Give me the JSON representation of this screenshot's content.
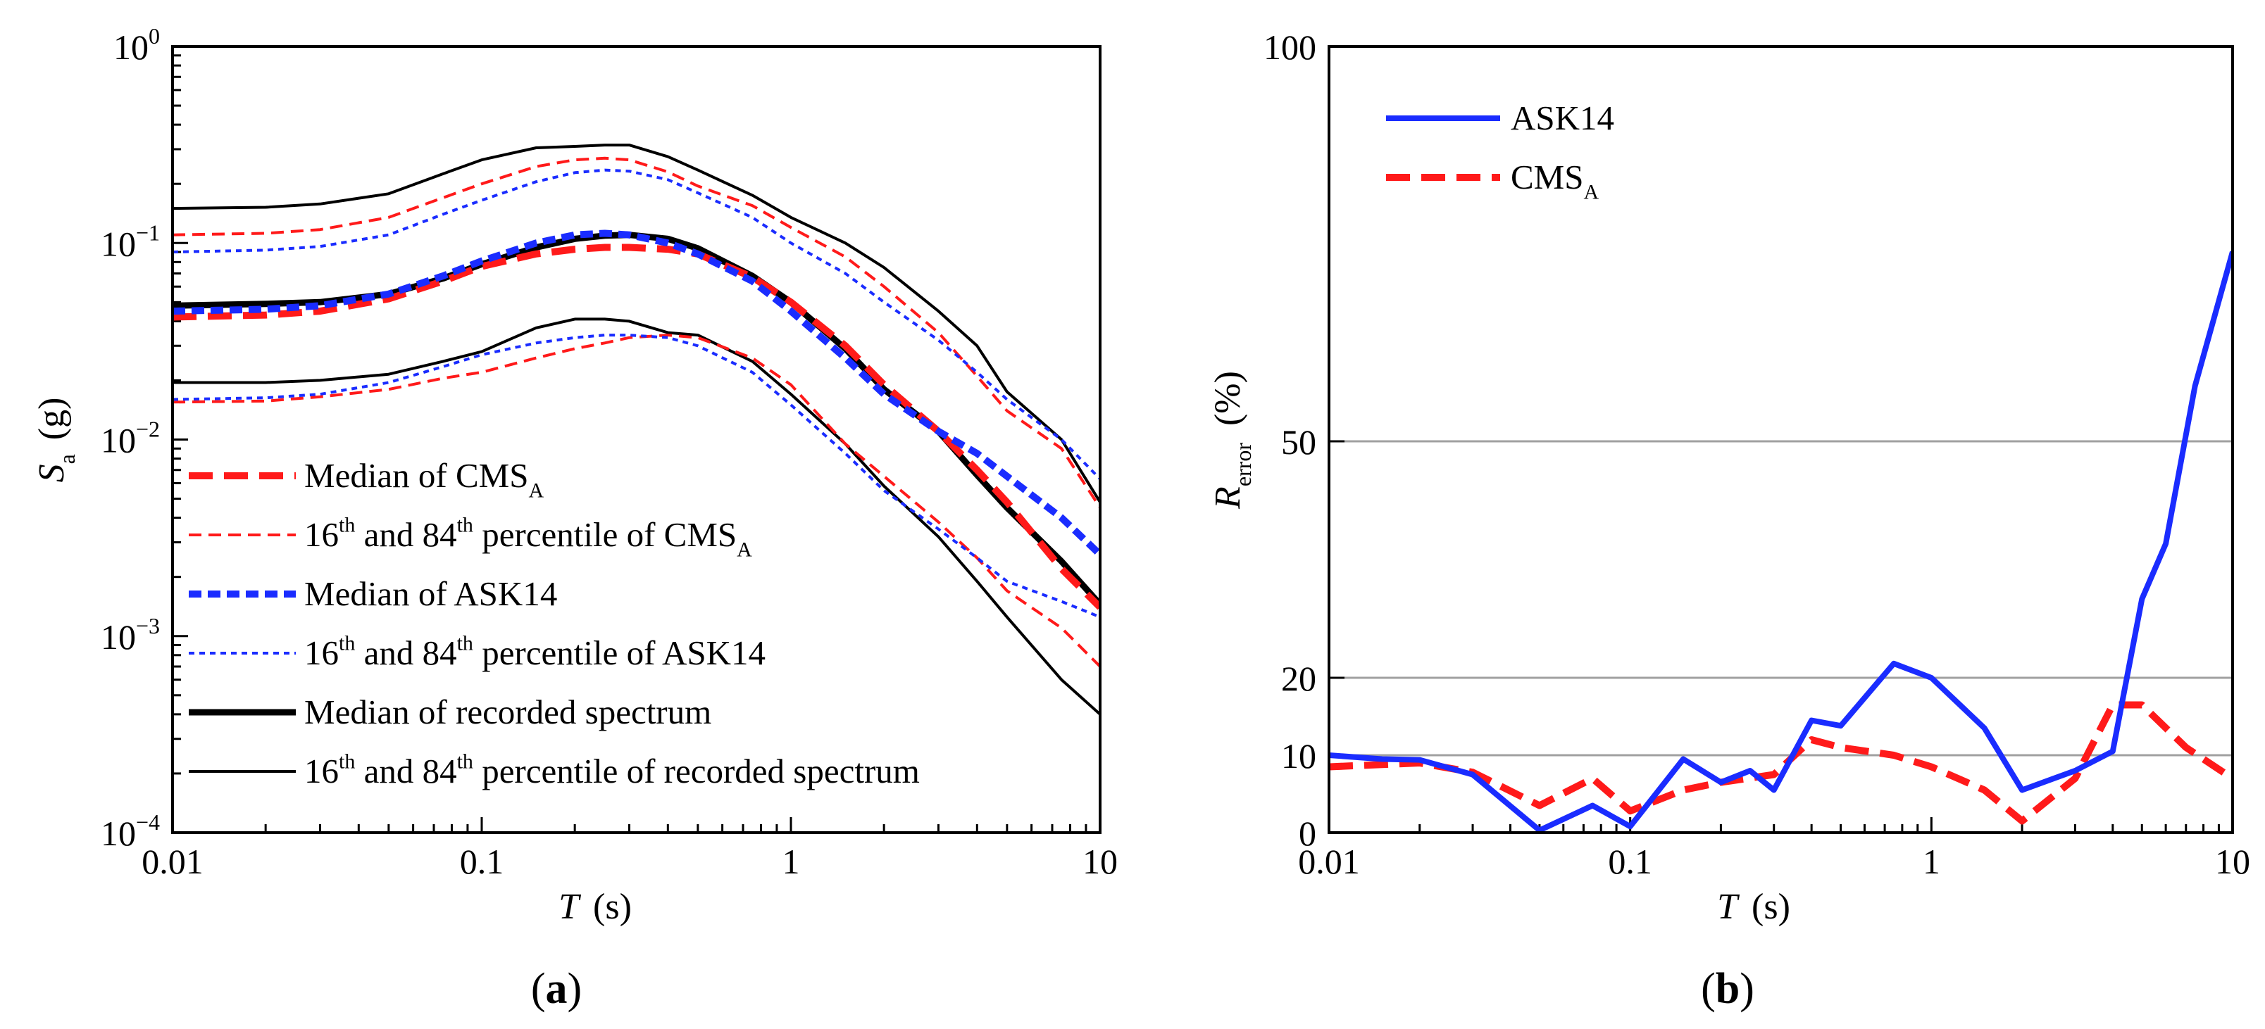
{
  "colors": {
    "red": "#ff1a1a",
    "blue": "#1a2cff",
    "black": "#000000",
    "grid": "#a0a0a0"
  },
  "chart_data": [
    {
      "type": "line",
      "panel_label": "a",
      "xlabel": {
        "symbol": "T",
        "unit": "(s)"
      },
      "ylabel": {
        "symbol": "S",
        "subscript": "a",
        "unit": "(g)"
      },
      "xscale": "log",
      "yscale": "log",
      "xlim": [
        0.01,
        10
      ],
      "ylim": [
        0.0001,
        1
      ],
      "xticks": [
        {
          "v": 0.01,
          "label": "0.01"
        },
        {
          "v": 0.1,
          "label": "0.1"
        },
        {
          "v": 1,
          "label": "1"
        },
        {
          "v": 10,
          "label": "10"
        }
      ],
      "yticks": [
        {
          "v": 0.0001,
          "base": "10",
          "exp": "−4"
        },
        {
          "v": 0.001,
          "base": "10",
          "exp": "−3"
        },
        {
          "v": 0.01,
          "base": "10",
          "exp": "−2"
        },
        {
          "v": 0.1,
          "base": "10",
          "exp": "−1"
        },
        {
          "v": 1,
          "base": "10",
          "exp": "0"
        }
      ],
      "grid": false,
      "legend_position": "bottom-left",
      "legend": [
        {
          "style": "red-thick-dash",
          "parts": [
            {
              "t": "Median of CMS"
            },
            {
              "t": "A",
              "sub": true
            }
          ]
        },
        {
          "style": "red-thin-dash",
          "parts": [
            {
              "t": "16"
            },
            {
              "t": "th",
              "sup": true
            },
            {
              "t": " and 84"
            },
            {
              "t": "th",
              "sup": true
            },
            {
              "t": " percentile of CMS"
            },
            {
              "t": "A",
              "sub": true
            }
          ]
        },
        {
          "style": "blue-thick-dash",
          "parts": [
            {
              "t": "Median of  ASK14"
            }
          ]
        },
        {
          "style": "blue-thin-dash",
          "parts": [
            {
              "t": "16"
            },
            {
              "t": "th",
              "sup": true
            },
            {
              "t": " and 84"
            },
            {
              "t": "th",
              "sup": true
            },
            {
              "t": " percentile of ASK14"
            }
          ]
        },
        {
          "style": "black-thick",
          "parts": [
            {
              "t": "Median of recorded spectrum"
            }
          ]
        },
        {
          "style": "black-thin",
          "parts": [
            {
              "t": "16"
            },
            {
              "t": "th",
              "sup": true
            },
            {
              "t": " and 84"
            },
            {
              "t": "th",
              "sup": true
            },
            {
              "t": " percentile of recorded spectrum"
            }
          ]
        }
      ],
      "series": [
        {
          "name": "Median of recorded spectrum",
          "style": "black-thick",
          "x": [
            0.01,
            0.02,
            0.03,
            0.05,
            0.075,
            0.1,
            0.15,
            0.2,
            0.25,
            0.3,
            0.4,
            0.5,
            0.75,
            1,
            1.5,
            2,
            3,
            4,
            5,
            7.5,
            10
          ],
          "y": [
            0.048,
            0.049,
            0.05,
            0.055,
            0.066,
            0.078,
            0.095,
            0.105,
            0.109,
            0.11,
            0.105,
            0.094,
            0.068,
            0.05,
            0.029,
            0.018,
            0.011,
            0.0066,
            0.0045,
            0.0024,
            0.00145
          ]
        },
        {
          "name": "16th percentile of recorded spectrum",
          "style": "black-thin",
          "x": [
            0.01,
            0.02,
            0.03,
            0.05,
            0.075,
            0.1,
            0.15,
            0.2,
            0.25,
            0.3,
            0.4,
            0.5,
            0.75,
            1,
            1.5,
            2,
            3,
            4,
            5,
            7.5,
            10
          ],
          "y": [
            0.0195,
            0.0195,
            0.02,
            0.0215,
            0.025,
            0.028,
            0.037,
            0.041,
            0.041,
            0.04,
            0.035,
            0.034,
            0.025,
            0.017,
            0.0095,
            0.0058,
            0.0032,
            0.0019,
            0.00125,
            0.0006,
            0.0004
          ]
        },
        {
          "name": "84th percentile of recorded spectrum",
          "style": "black-thin",
          "x": [
            0.01,
            0.02,
            0.03,
            0.05,
            0.075,
            0.1,
            0.15,
            0.2,
            0.25,
            0.3,
            0.4,
            0.5,
            0.75,
            1,
            1.5,
            2,
            3,
            4,
            5,
            7.5,
            10
          ],
          "y": [
            0.15,
            0.152,
            0.158,
            0.178,
            0.225,
            0.265,
            0.305,
            0.31,
            0.315,
            0.315,
            0.275,
            0.235,
            0.175,
            0.135,
            0.1,
            0.075,
            0.045,
            0.03,
            0.0175,
            0.01,
            0.0048
          ]
        },
        {
          "name": "Median of CMSA",
          "style": "red-thick-dash",
          "x": [
            0.01,
            0.02,
            0.03,
            0.05,
            0.075,
            0.1,
            0.15,
            0.2,
            0.25,
            0.3,
            0.4,
            0.5,
            0.75,
            1,
            1.5,
            2,
            3,
            4,
            5,
            7.5,
            10
          ],
          "y": [
            0.042,
            0.043,
            0.045,
            0.052,
            0.064,
            0.076,
            0.088,
            0.093,
            0.095,
            0.095,
            0.093,
            0.088,
            0.067,
            0.05,
            0.03,
            0.019,
            0.011,
            0.007,
            0.0048,
            0.0022,
            0.0014
          ]
        },
        {
          "name": "16th percentile of CMSA",
          "style": "red-thin-dash",
          "x": [
            0.01,
            0.02,
            0.03,
            0.05,
            0.075,
            0.1,
            0.15,
            0.2,
            0.25,
            0.3,
            0.4,
            0.5,
            0.75,
            1,
            1.5,
            2,
            3,
            4,
            5,
            7.5,
            10
          ],
          "y": [
            0.0155,
            0.0157,
            0.0165,
            0.018,
            0.0205,
            0.022,
            0.026,
            0.029,
            0.031,
            0.033,
            0.034,
            0.033,
            0.026,
            0.019,
            0.0095,
            0.0065,
            0.0038,
            0.0025,
            0.0017,
            0.0011,
            0.0007
          ]
        },
        {
          "name": "84th percentile of CMSA",
          "style": "red-thin-dash",
          "x": [
            0.01,
            0.02,
            0.03,
            0.05,
            0.075,
            0.1,
            0.15,
            0.2,
            0.25,
            0.3,
            0.4,
            0.5,
            0.75,
            1,
            1.5,
            2,
            3,
            4,
            5,
            7.5,
            10
          ],
          "y": [
            0.11,
            0.112,
            0.117,
            0.135,
            0.17,
            0.2,
            0.245,
            0.265,
            0.27,
            0.265,
            0.23,
            0.195,
            0.155,
            0.12,
            0.085,
            0.06,
            0.035,
            0.021,
            0.014,
            0.009,
            0.0045
          ]
        },
        {
          "name": "Median of  ASK14",
          "style": "blue-thick-dash",
          "x": [
            0.01,
            0.02,
            0.03,
            0.05,
            0.075,
            0.1,
            0.15,
            0.2,
            0.25,
            0.3,
            0.4,
            0.5,
            0.75,
            1,
            1.5,
            2,
            3,
            4,
            5,
            7.5,
            10
          ],
          "y": [
            0.045,
            0.046,
            0.048,
            0.055,
            0.068,
            0.081,
            0.1,
            0.11,
            0.112,
            0.11,
            0.1,
            0.088,
            0.064,
            0.045,
            0.026,
            0.017,
            0.011,
            0.0085,
            0.0065,
            0.004,
            0.0026
          ]
        },
        {
          "name": "16th percentile of ASK14",
          "style": "blue-thin-dash",
          "x": [
            0.01,
            0.02,
            0.03,
            0.05,
            0.075,
            0.1,
            0.15,
            0.2,
            0.25,
            0.3,
            0.4,
            0.5,
            0.75,
            1,
            1.5,
            2,
            3,
            4,
            5,
            7.5,
            10
          ],
          "y": [
            0.016,
            0.0163,
            0.017,
            0.0195,
            0.0235,
            0.027,
            0.031,
            0.033,
            0.034,
            0.034,
            0.033,
            0.03,
            0.022,
            0.015,
            0.0085,
            0.0055,
            0.0035,
            0.0025,
            0.0019,
            0.0015,
            0.00125
          ]
        },
        {
          "name": "84th percentile of ASK14",
          "style": "blue-thin-dash",
          "x": [
            0.01,
            0.02,
            0.03,
            0.05,
            0.075,
            0.1,
            0.15,
            0.2,
            0.25,
            0.3,
            0.4,
            0.5,
            0.75,
            1,
            1.5,
            2,
            3,
            4,
            5,
            7.5,
            10
          ],
          "y": [
            0.09,
            0.092,
            0.096,
            0.11,
            0.14,
            0.165,
            0.205,
            0.228,
            0.235,
            0.232,
            0.21,
            0.18,
            0.135,
            0.1,
            0.07,
            0.05,
            0.032,
            0.022,
            0.016,
            0.01,
            0.0063
          ]
        }
      ]
    },
    {
      "type": "line",
      "panel_label": "b",
      "xlabel": {
        "symbol": "T",
        "unit": "(s)"
      },
      "ylabel": {
        "symbol": "R",
        "subscript": "error",
        "unit": "(%)"
      },
      "xscale": "log",
      "yscale": "piecewise-linear",
      "xlim": [
        0.01,
        10
      ],
      "ylim": [
        0,
        100
      ],
      "xticks": [
        {
          "v": 0.01,
          "label": "0.01"
        },
        {
          "v": 0.1,
          "label": "0.1"
        },
        {
          "v": 1,
          "label": "1"
        },
        {
          "v": 10,
          "label": "10"
        }
      ],
      "yticks": [
        {
          "v": 0,
          "label": "0"
        },
        {
          "v": 10,
          "label": "10"
        },
        {
          "v": 20,
          "label": "20"
        },
        {
          "v": 50,
          "label": "50"
        },
        {
          "v": 100,
          "label": "100"
        }
      ],
      "grid": true,
      "legend_position": "top-left",
      "legend": [
        {
          "style": "blue-solid",
          "parts": [
            {
              "t": "ASK14"
            }
          ]
        },
        {
          "style": "red-thick-dash",
          "parts": [
            {
              "t": "CMS"
            },
            {
              "t": "A",
              "sub": true
            }
          ]
        }
      ],
      "series": [
        {
          "name": "ASK14",
          "style": "blue-solid",
          "x": [
            0.01,
            0.015,
            0.02,
            0.03,
            0.05,
            0.075,
            0.1,
            0.15,
            0.2,
            0.25,
            0.3,
            0.4,
            0.5,
            0.75,
            1,
            1.5,
            2,
            3,
            4,
            5,
            6,
            7.5,
            10
          ],
          "y": [
            10,
            9.5,
            9.4,
            7.5,
            0.3,
            3.5,
            0.8,
            9.5,
            6.5,
            8,
            5.5,
            14.5,
            13.8,
            21.8,
            20,
            13.5,
            5.5,
            8,
            10.5,
            30,
            37,
            57,
            74
          ]
        },
        {
          "name": "CMSA",
          "style": "red-thick-dash",
          "x": [
            0.01,
            0.02,
            0.03,
            0.05,
            0.075,
            0.1,
            0.15,
            0.2,
            0.3,
            0.4,
            0.5,
            0.75,
            1,
            1.5,
            2,
            3,
            4,
            5,
            7,
            10
          ],
          "y": [
            8.5,
            9,
            7.8,
            3.5,
            7,
            2.8,
            5.5,
            6.5,
            7.5,
            12,
            11,
            10,
            8.5,
            5.5,
            1.5,
            7,
            16.5,
            16.5,
            11,
            7
          ]
        }
      ]
    }
  ]
}
